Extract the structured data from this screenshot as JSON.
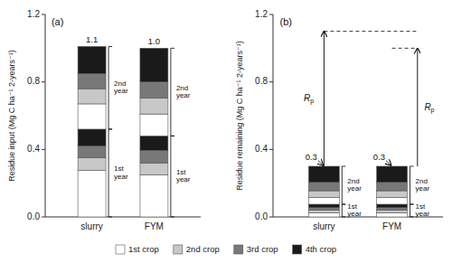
{
  "chart_data": [
    {
      "type": "bar",
      "stacked": true,
      "title": "(a)",
      "y_label": "Residue input (Mg C ha⁻¹ 2-years⁻¹)",
      "categories": [
        "slurry",
        "FYM"
      ],
      "ylim": [
        0,
        1.2
      ],
      "yticks": [
        {
          "value": 0,
          "label": "0.0"
        },
        0.4,
        0.8,
        1.2
      ],
      "series": [
        {
          "color": "#ffffff",
          "values": [
            0.275,
            0.25
          ]
        },
        {
          "color": "#c8c8c8",
          "values": [
            0.075,
            0.07
          ]
        },
        {
          "color": "#787878",
          "values": [
            0.07,
            0.075
          ]
        },
        {
          "color": "#1a1a1a",
          "values": [
            0.1,
            0.085
          ]
        },
        {
          "color": "#ffffff",
          "values": [
            0.15,
            0.13
          ]
        },
        {
          "color": "#c8c8c8",
          "values": [
            0.09,
            0.095
          ]
        },
        {
          "color": "#787878",
          "values": [
            0.09,
            0.095
          ]
        },
        {
          "color": "#1a1a1a",
          "values": [
            0.16,
            0.2
          ]
        }
      ],
      "annotations": {
        "totals": [
          "1.1",
          "1.0"
        ],
        "brackets": [
          "1st\nyear",
          "2nd\nyear"
        ]
      }
    },
    {
      "type": "bar",
      "stacked": true,
      "title": "(b)",
      "y_label": "Residue remaining (Mg C ha⁻¹ 2-years⁻¹)",
      "categories": [
        "slurry",
        "FYM"
      ],
      "ylim": [
        0,
        1.2
      ],
      "yticks": [
        {
          "value": 0,
          "label": "0.0"
        },
        0.4,
        0.8,
        1.2
      ],
      "series": [
        {
          "name": "1st crop",
          "color": "#ffffff",
          "values": [
            0.025,
            0.025
          ]
        },
        {
          "name": "2nd crop",
          "color": "#c8c8c8",
          "values": [
            0.015,
            0.015
          ]
        },
        {
          "name": "3rd crop",
          "color": "#787878",
          "values": [
            0.015,
            0.015
          ]
        },
        {
          "name": "4th crop",
          "color": "#1a1a1a",
          "values": [
            0.02,
            0.02
          ]
        },
        {
          "color": "#ffffff",
          "values": [
            0.04,
            0.04
          ]
        },
        {
          "color": "#c8c8c8",
          "values": [
            0.04,
            0.04
          ]
        },
        {
          "color": "#787878",
          "values": [
            0.05,
            0.05
          ]
        },
        {
          "color": "#1a1a1a",
          "values": [
            0.095,
            0.095
          ]
        }
      ],
      "rp_levels": [
        1.1,
        1.0
      ],
      "rp_label": "Rp",
      "annotations": {
        "totals": [
          "0.3",
          "0.3"
        ],
        "brackets": [
          "1st\nyear",
          "2nd\nyear"
        ]
      },
      "legend": "bottom"
    }
  ]
}
